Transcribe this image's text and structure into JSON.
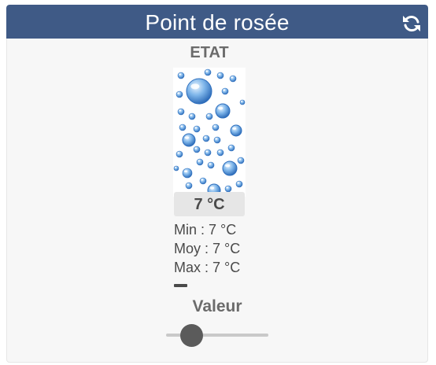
{
  "widget": {
    "title": "Point de rosée",
    "header_color": "#3f5a86",
    "refresh_icon": "refresh-icon"
  },
  "state": {
    "label": "ETAT",
    "image": "water-drops-icon"
  },
  "current": {
    "value": "7 °C"
  },
  "stats": {
    "min": "Min : 7 °C",
    "moy": "Moy : 7 °C",
    "max": "Max : 7 °C"
  },
  "slider": {
    "label": "Valeur",
    "level": 0.25
  }
}
